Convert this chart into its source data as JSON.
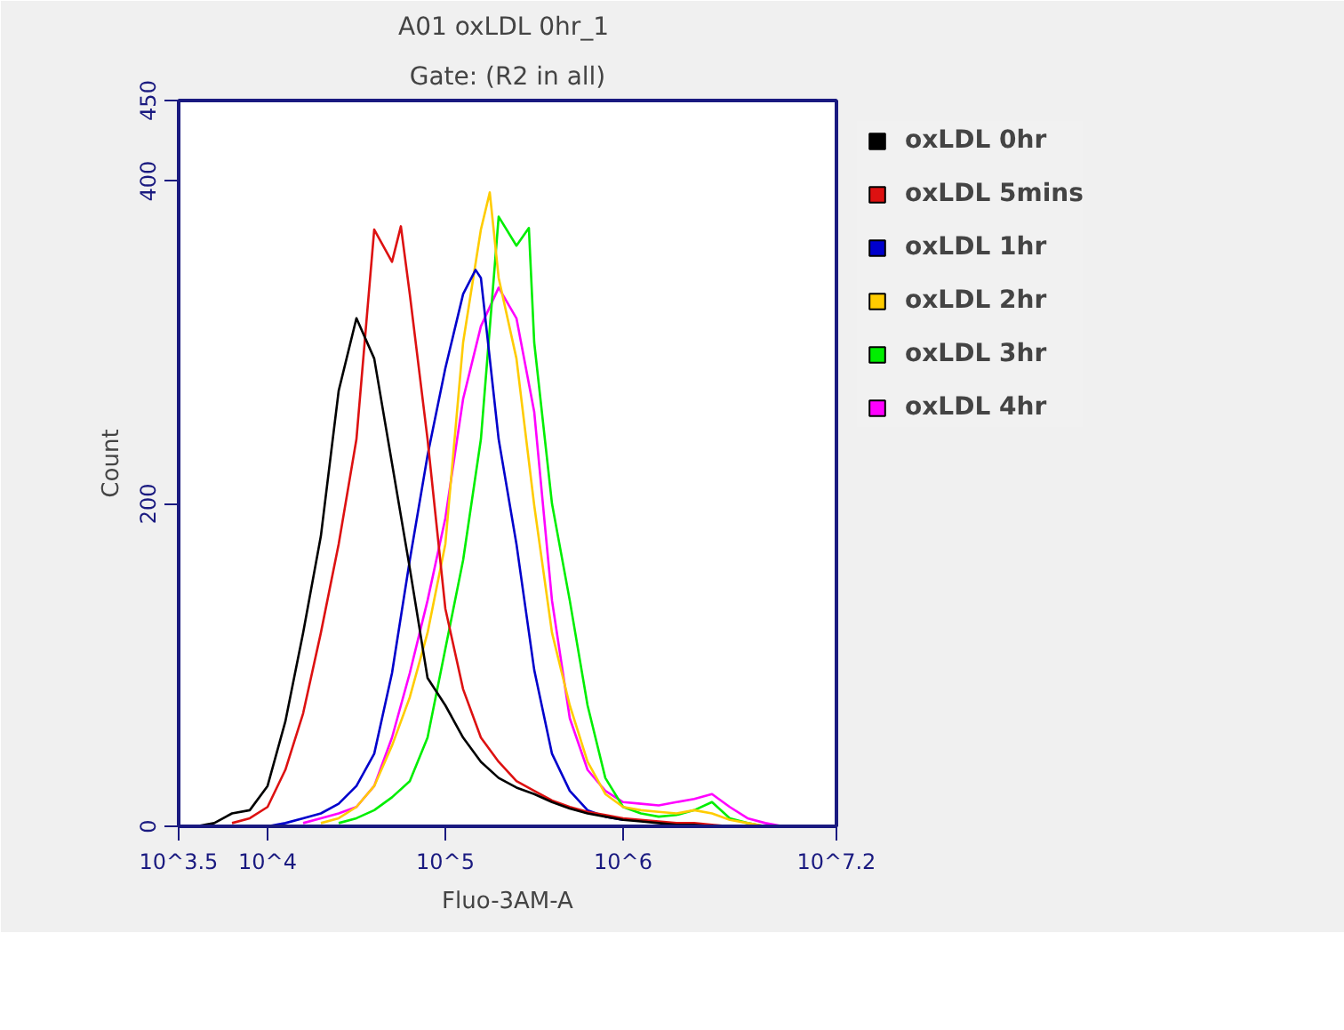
{
  "chart_data": {
    "type": "line",
    "title": "A01  oxLDL 0hr_1",
    "subtitle": "Gate: (R2 in all)",
    "xlabel": "Fluo-3AM-A",
    "ylabel": "Count",
    "log": "x",
    "xlim": [
      3162,
      15850000
    ],
    "ylim": [
      0,
      450
    ],
    "xticks": [
      {
        "value": 3162,
        "label": "10^3.5"
      },
      {
        "value": 10000,
        "label": "10^4"
      },
      {
        "value": 100000,
        "label": "10^5"
      },
      {
        "value": 1000000,
        "label": "10^6"
      },
      {
        "value": 15850000,
        "label": "10^7.2"
      }
    ],
    "yticks": [
      0,
      200,
      400,
      450
    ],
    "grid": false,
    "legend": "right",
    "marker": "none",
    "line_style": "solid",
    "series": [
      {
        "name": "oxLDL 0hr",
        "color": "#000000",
        "x": [
          3981,
          5012,
          6310,
          7943,
          10000,
          12590,
          15850,
          19950,
          25120,
          31620,
          39810,
          50120,
          63100,
          79430,
          100000,
          125900,
          158500,
          199500,
          251200,
          316200,
          398100,
          501200,
          631000,
          794300,
          1000000,
          1259000,
          1585000,
          1995000,
          2512000,
          3162000
        ],
        "values": [
          0,
          2,
          8,
          10,
          25,
          65,
          120,
          180,
          270,
          315,
          290,
          225,
          160,
          92,
          75,
          55,
          40,
          30,
          24,
          20,
          15,
          11,
          8,
          6,
          4,
          3,
          2,
          1,
          1,
          0
        ]
      },
      {
        "name": "oxLDL 5mins",
        "color": "#dd1111",
        "x": [
          6310,
          7943,
          10000,
          12590,
          15850,
          19950,
          25120,
          31620,
          39810,
          50120,
          56230,
          63100,
          79430,
          100000,
          125900,
          158500,
          199500,
          251200,
          316200,
          398100,
          501200,
          631000,
          794300,
          1000000,
          1259000,
          1585000,
          1995000,
          2512000,
          3162000,
          3981000
        ],
        "values": [
          2,
          5,
          12,
          35,
          70,
          120,
          175,
          240,
          370,
          350,
          372,
          330,
          240,
          135,
          85,
          55,
          40,
          28,
          22,
          16,
          12,
          9,
          7,
          5,
          4,
          3,
          2,
          2,
          1,
          0
        ]
      },
      {
        "name": "oxLDL 1hr",
        "color": "#0000cc",
        "x": [
          10000,
          12590,
          15850,
          19950,
          25120,
          31620,
          39810,
          50120,
          63100,
          79430,
          100000,
          125900,
          147900,
          158500,
          199500,
          251200,
          316200,
          398100,
          501200,
          631000,
          794300,
          1000000
        ],
        "values": [
          0,
          2,
          5,
          8,
          14,
          25,
          45,
          95,
          165,
          230,
          284,
          330,
          345,
          340,
          240,
          175,
          97,
          45,
          22,
          10,
          6,
          4
        ]
      },
      {
        "name": "oxLDL 2hr",
        "color": "#ffcc00",
        "x": [
          19950,
          25120,
          31620,
          39810,
          50120,
          63100,
          79430,
          100000,
          125900,
          158500,
          177800,
          199500,
          251200,
          316200,
          398100,
          501200,
          631000,
          794300,
          1000000,
          1259000,
          1585000,
          1995000,
          2512000,
          3162000,
          3981000,
          5012000,
          6310000
        ],
        "values": [
          2,
          5,
          12,
          25,
          50,
          80,
          120,
          175,
          300,
          370,
          393,
          340,
          290,
          199,
          120,
          75,
          40,
          20,
          12,
          10,
          9,
          8,
          10,
          8,
          4,
          2,
          0
        ]
      },
      {
        "name": "oxLDL 3hr",
        "color": "#00ee00",
        "x": [
          25120,
          31620,
          39810,
          50120,
          63100,
          79430,
          100000,
          125900,
          158500,
          199500,
          251200,
          295100,
          316200,
          398100,
          501200,
          631000,
          794300,
          1000000,
          1259000,
          1585000,
          1995000,
          2512000,
          3162000,
          3981000,
          5012000,
          6310000
        ],
        "values": [
          2,
          5,
          10,
          18,
          28,
          55,
          110,
          165,
          240,
          378,
          360,
          371,
          300,
          200,
          140,
          75,
          30,
          12,
          8,
          6,
          7,
          10,
          15,
          5,
          2,
          0
        ]
      },
      {
        "name": "oxLDL 4hr",
        "color": "#ff00ff",
        "x": [
          15850,
          19950,
          25120,
          31620,
          39810,
          50120,
          63100,
          79430,
          100000,
          125900,
          158500,
          199500,
          251200,
          316200,
          398100,
          501200,
          631000,
          794300,
          1000000,
          1259000,
          1585000,
          1995000,
          2512000,
          3162000,
          3981000,
          5012000,
          6310000,
          7943000
        ],
        "values": [
          2,
          5,
          8,
          12,
          25,
          55,
          95,
          140,
          191,
          265,
          310,
          334,
          315,
          257,
          140,
          67,
          35,
          22,
          15,
          14,
          13,
          15,
          17,
          20,
          12,
          5,
          2,
          0
        ]
      }
    ]
  }
}
